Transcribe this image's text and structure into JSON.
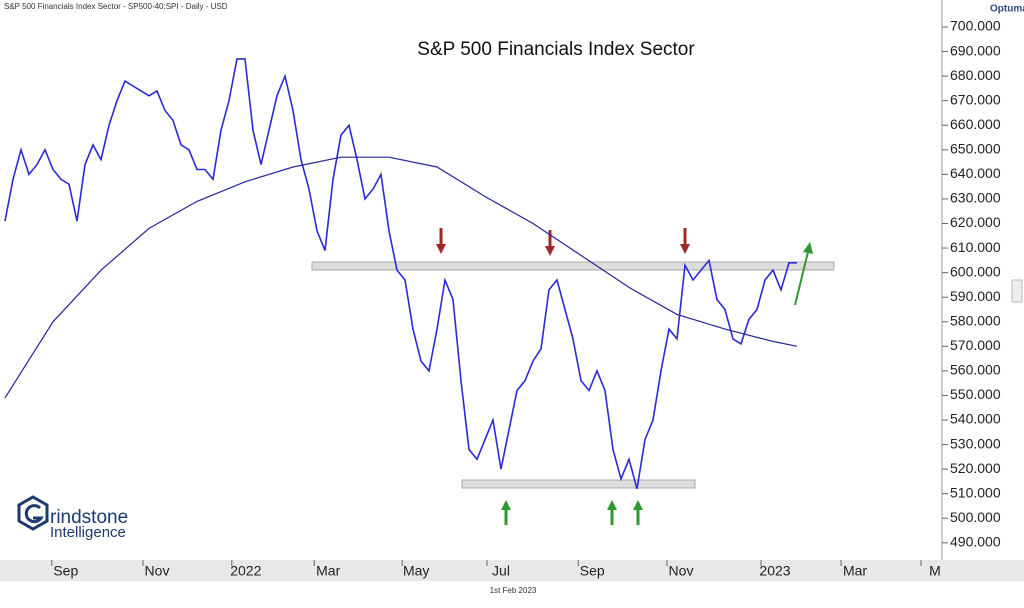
{
  "header": {
    "caption": "S&P 500 Financials Index Sector - SP500-40:SPI - Daily - USD",
    "brand": "Optuma"
  },
  "logo": {
    "line1": "rindstone",
    "line2": "Intelligence"
  },
  "footer": {
    "date": "1st Feb 2023"
  },
  "chart_data": {
    "type": "line",
    "title": "S&P 500 Financials Index Sector",
    "xlim": [
      0,
      117
    ],
    "xticks": [
      {
        "value": 7.6,
        "label": "Sep"
      },
      {
        "value": 19,
        "label": "Nov"
      },
      {
        "value": 30.1,
        "label": "2022"
      },
      {
        "value": 40.4,
        "label": "Mar"
      },
      {
        "value": 51.4,
        "label": "May"
      },
      {
        "value": 62,
        "label": "Jul"
      },
      {
        "value": 73.4,
        "label": "Sep"
      },
      {
        "value": 84.5,
        "label": "Nov"
      },
      {
        "value": 96.25,
        "label": "2023"
      },
      {
        "value": 106.25,
        "label": "Mar"
      },
      {
        "value": 116.25,
        "label": "M"
      }
    ],
    "ylim": [
      483,
      711
    ],
    "yticks": [
      {
        "value": 700,
        "label": "700.000"
      },
      {
        "value": 690,
        "label": "690.000"
      },
      {
        "value": 680,
        "label": "680.000"
      },
      {
        "value": 670,
        "label": "670.000"
      },
      {
        "value": 660,
        "label": "660.000"
      },
      {
        "value": 650,
        "label": "650.000"
      },
      {
        "value": 640,
        "label": "640.000"
      },
      {
        "value": 630,
        "label": "630.000"
      },
      {
        "value": 620,
        "label": "620.000"
      },
      {
        "value": 610,
        "label": "610.000"
      },
      {
        "value": 600,
        "label": "600.000"
      },
      {
        "value": 590,
        "label": "590.000"
      },
      {
        "value": 580,
        "label": "580.000"
      },
      {
        "value": 570,
        "label": "570.000"
      },
      {
        "value": 560,
        "label": "560.000"
      },
      {
        "value": 550,
        "label": "550.000"
      },
      {
        "value": 540,
        "label": "540.000"
      },
      {
        "value": 530,
        "label": "530.000"
      },
      {
        "value": 520,
        "label": "520.000"
      },
      {
        "value": 510,
        "label": "510.000"
      },
      {
        "value": 500,
        "label": "500.000"
      },
      {
        "value": 490,
        "label": "490.000"
      }
    ],
    "series": [
      {
        "color": "#2a2ad6",
        "values": [
          621,
          638,
          650,
          640,
          644,
          650,
          642,
          638,
          636,
          621,
          644,
          652,
          646,
          660,
          670,
          678,
          676,
          674,
          672,
          674,
          666,
          662,
          652,
          650,
          642,
          642,
          638,
          658,
          670,
          687,
          687,
          658,
          644,
          658,
          672,
          680,
          666,
          646,
          634,
          617,
          609,
          638,
          656,
          660,
          646,
          630,
          634,
          640,
          617,
          601,
          597,
          577,
          564,
          560,
          577,
          597,
          589,
          556,
          528,
          524,
          532,
          540,
          520,
          536,
          552,
          556,
          564,
          569,
          593,
          597,
          585,
          573,
          556,
          552,
          560,
          552,
          528,
          516,
          524,
          512,
          532,
          540,
          560,
          577,
          573,
          603,
          597,
          601,
          605,
          589,
          585,
          573,
          571,
          581,
          585,
          597,
          601,
          593,
          604,
          604
        ]
      },
      {
        "color": "#25259a",
        "x": [
          0,
          6,
          12,
          18,
          24,
          30,
          36,
          42,
          48,
          54,
          60,
          66,
          72,
          78,
          84,
          90,
          96,
          99
        ],
        "values": [
          549,
          580,
          601,
          618,
          629,
          637,
          643,
          647,
          647,
          643,
          631,
          620,
          607,
          594,
          583,
          577,
          572,
          570
        ]
      }
    ]
  }
}
